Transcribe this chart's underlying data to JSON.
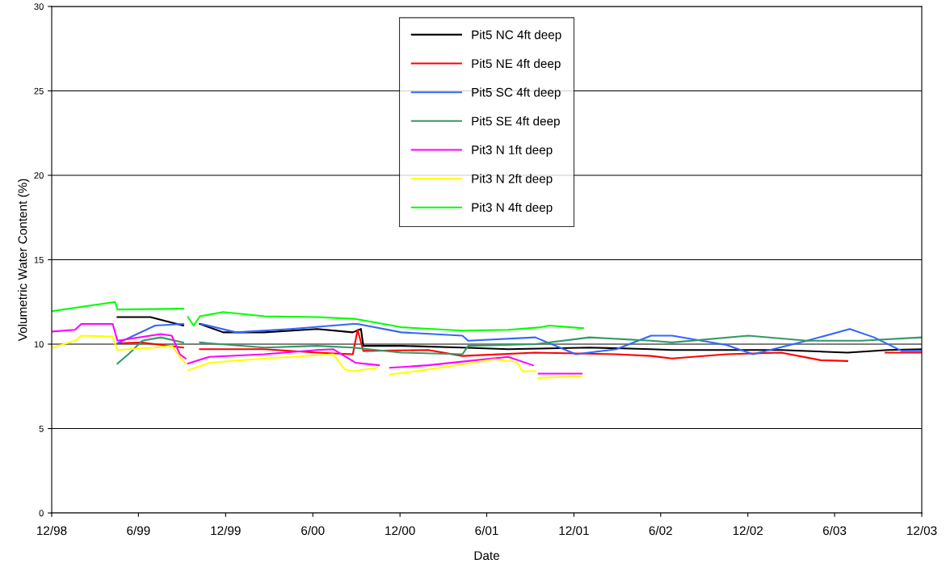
{
  "chart_data": {
    "type": "line",
    "xlabel": "Date",
    "ylabel": "Volumetric Water Content (%)",
    "xlim": [
      "1998-12-01",
      "2003-12-01"
    ],
    "xticks": [
      {
        "value": "1998-12-01",
        "label": "12/98"
      },
      {
        "value": "1999-06-01",
        "label": "6/99"
      },
      {
        "value": "1999-12-01",
        "label": "12/99"
      },
      {
        "value": "2000-06-01",
        "label": "6/00"
      },
      {
        "value": "2000-12-01",
        "label": "12/00"
      },
      {
        "value": "2001-06-01",
        "label": "6/01"
      },
      {
        "value": "2001-12-01",
        "label": "12/01"
      },
      {
        "value": "2002-06-01",
        "label": "6/02"
      },
      {
        "value": "2002-12-01",
        "label": "12/02"
      },
      {
        "value": "2003-06-01",
        "label": "6/03"
      },
      {
        "value": "2003-12-01",
        "label": "12/03"
      }
    ],
    "ylim": [
      0,
      30
    ],
    "yticks": [
      0,
      5,
      10,
      15,
      20,
      25,
      30
    ],
    "grid": "y",
    "legend": "top",
    "marker": "none",
    "line_style": "solid",
    "series": [
      {
        "name": "Pit5 NC 4ft deep",
        "color": "#000000",
        "x": [
          "1999-04-18",
          "1999-06-26",
          "1999-09-03",
          "1999-09-08",
          "1999-10-08",
          "1999-11-26",
          "2000-02-20",
          "2000-06-10",
          "2000-08-24",
          "2000-09-10",
          "2000-09-15",
          "2000-12-04",
          "2001-04-11",
          "2001-07-16",
          "2002-01-03",
          "2002-05-12",
          "2002-06-25",
          "2003-02-09",
          "2003-06-28",
          "2003-09-21",
          "2003-11-30"
        ],
        "values": [
          11.6,
          11.6,
          11.1,
          null,
          11.2,
          10.7,
          10.7,
          10.9,
          10.7,
          10.9,
          9.9,
          9.9,
          9.8,
          9.7,
          9.8,
          9.7,
          9.65,
          9.65,
          9.5,
          9.65,
          9.7
        ]
      },
      {
        "name": "Pit5 NE 4ft deep",
        "color": "#ff0000",
        "x": [
          "1999-04-18",
          "1999-06-09",
          "1999-09-03",
          "1999-09-08",
          "1999-10-08",
          "2000-02-20",
          "2000-06-10",
          "2000-08-24",
          "2000-09-03",
          "2000-09-15",
          "2001-01-29",
          "2001-04-11",
          "2001-09-11",
          "2002-02-28",
          "2002-05-12",
          "2002-06-25",
          "2002-10-17",
          "2003-02-09",
          "2003-05-03",
          "2003-06-28",
          "2003-07-27",
          "2003-09-16",
          "2003-11-30"
        ],
        "values": [
          10.05,
          10.1,
          9.8,
          null,
          9.7,
          9.7,
          9.5,
          9.4,
          10.85,
          9.6,
          9.65,
          9.3,
          9.5,
          9.4,
          9.3,
          9.15,
          9.4,
          9.5,
          9.05,
          9.0,
          null,
          9.5,
          9.5
        ]
      },
      {
        "name": "Pit5 SC 4ft deep",
        "color": "#3366ff",
        "x": [
          "1999-04-18",
          "1999-07-06",
          "1999-09-03",
          "1999-09-08",
          "1999-10-11",
          "1999-12-23",
          "2000-04-15",
          "2000-08-24",
          "2000-09-03",
          "2000-12-04",
          "2001-04-11",
          "2001-04-23",
          "2001-09-11",
          "2001-12-05",
          "2002-02-28",
          "2002-05-12",
          "2002-06-25",
          "2002-10-17",
          "2002-12-12",
          "2003-04-04",
          "2003-07-03",
          "2003-08-23",
          "2003-10-20",
          "2003-11-30"
        ],
        "values": [
          10.05,
          11.1,
          11.2,
          null,
          11.2,
          10.7,
          10.9,
          11.2,
          11.2,
          10.7,
          10.5,
          10.2,
          10.4,
          9.4,
          9.7,
          10.5,
          10.5,
          9.95,
          9.4,
          10.2,
          10.9,
          10.4,
          9.6,
          9.6
        ]
      },
      {
        "name": "Pit5 SE 4ft deep",
        "color": "#339966",
        "x": [
          "1999-04-18",
          "1999-05-11",
          "1999-06-09",
          "1999-07-18",
          "1999-09-03",
          "1999-09-08",
          "1999-10-08",
          "2000-02-20",
          "2000-06-10",
          "2000-08-24",
          "2000-12-04",
          "2001-04-11",
          "2001-04-23",
          "2001-09-11",
          "2002-01-03",
          "2002-05-12",
          "2002-06-25",
          "2002-12-02",
          "2003-04-04",
          "2003-07-27",
          "2003-11-30"
        ],
        "values": [
          8.85,
          9.4,
          10.2,
          10.4,
          10.1,
          null,
          10.1,
          9.8,
          9.9,
          9.8,
          9.5,
          9.4,
          9.9,
          10.0,
          10.4,
          10.2,
          10.1,
          10.5,
          10.2,
          10.2,
          10.4
        ]
      },
      {
        "name": "Pit3 N 1ft deep",
        "color": "#ff00ff",
        "x": [
          "1998-12-03",
          "1999-01-19",
          "1999-02-01",
          "1999-04-08",
          "1999-04-18",
          "1999-06-26",
          "1999-07-18",
          "1999-08-10",
          "1999-08-27",
          "1999-09-08",
          "1999-09-10",
          "1999-09-13",
          "1999-10-28",
          "2000-02-20",
          "2000-06-10",
          "2000-07-14",
          "2000-08-24",
          "2000-08-29",
          "2000-10-18",
          "2000-11-01",
          "2000-11-10",
          "2001-01-29",
          "2001-04-23",
          "2001-07-16",
          "2001-09-06",
          "2001-09-12",
          "2001-09-18",
          "2001-12-17"
        ],
        "values": [
          10.75,
          10.85,
          11.2,
          11.2,
          10.2,
          10.5,
          10.6,
          10.5,
          9.4,
          9.15,
          null,
          8.85,
          9.25,
          9.4,
          9.65,
          9.7,
          9.0,
          8.9,
          8.75,
          null,
          8.6,
          8.75,
          9.0,
          9.25,
          8.75,
          null,
          8.25,
          8.25
        ]
      },
      {
        "name": "Pit3 N 2ft deep",
        "color": "#ffff00",
        "x": [
          "1998-12-03",
          "1999-01-19",
          "1999-02-01",
          "1999-04-08",
          "1999-04-18",
          "1999-07-06",
          "1999-08-10",
          "1999-08-27",
          "1999-09-08",
          "1999-09-10",
          "1999-09-13",
          "1999-10-28",
          "2000-02-20",
          "2000-07-14",
          "2000-08-07",
          "2000-08-24",
          "2000-10-14",
          "2000-11-01",
          "2000-11-10",
          "2001-01-29",
          "2001-06-18",
          "2001-08-03",
          "2001-08-15",
          "2001-09-11",
          "2001-09-14",
          "2001-09-18",
          "2001-12-17"
        ],
        "values": [
          9.8,
          10.2,
          10.5,
          10.45,
          9.65,
          9.8,
          9.9,
          9.25,
          8.85,
          null,
          8.45,
          8.9,
          9.15,
          9.4,
          8.5,
          8.4,
          8.6,
          null,
          8.2,
          8.5,
          9.1,
          8.95,
          8.4,
          8.4,
          null,
          8.0,
          8.1
        ]
      },
      {
        "name": "Pit3 N 4ft deep",
        "color": "#00ff00",
        "x": [
          "1998-12-03",
          "1999-04-13",
          "1999-04-18",
          "1999-09-03",
          "1999-09-08",
          "1999-09-13",
          "1999-09-25",
          "1999-10-08",
          "1999-11-26",
          "2000-02-20",
          "2000-06-10",
          "2000-08-24",
          "2000-08-29",
          "2000-12-04",
          "2001-04-11",
          "2001-07-16",
          "2001-09-23",
          "2001-10-10",
          "2001-12-17",
          "2001-12-20"
        ],
        "values": [
          11.96,
          12.5,
          12.05,
          12.1,
          null,
          11.6,
          11.1,
          11.65,
          11.9,
          11.65,
          11.6,
          11.5,
          11.5,
          11.0,
          10.8,
          10.85,
          11.0,
          11.1,
          10.95,
          10.95
        ]
      }
    ]
  }
}
